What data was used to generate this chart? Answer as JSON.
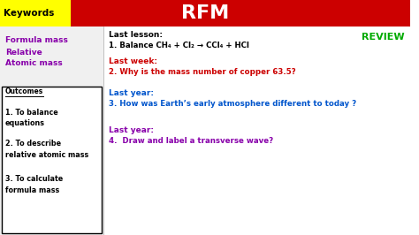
{
  "title": "RFM",
  "title_bg": "#cc0000",
  "title_color": "#ffffff",
  "keywords_label": "Keywords",
  "keywords_bg": "#ffff00",
  "keywords_color": "#000000",
  "keywords_list": [
    "Formula mass",
    "Relative",
    "Atomic mass"
  ],
  "keywords_list_color": "#8800aa",
  "outcomes_label": "Outcomes",
  "outcomes_items": [
    "1. To balance\nequations",
    "2. To describe\nrelative atomic mass",
    "3. To calculate\nformula mass"
  ],
  "outcomes_color": "#000000",
  "review_text": "REVIEW",
  "review_color": "#00aa00",
  "sections": [
    {
      "label": "Last lesson:",
      "label_color": "#000000",
      "content": "1. Balance CH₄ + Cl₂ → CCl₄ + HCl",
      "content_color": "#000000"
    },
    {
      "label": "Last week:",
      "label_color": "#cc0000",
      "content": "2. Why is the mass number of copper 63.5?",
      "content_color": "#cc0000"
    },
    {
      "label": "Last year:",
      "label_color": "#0055cc",
      "content": "3. How was Earth’s early atmosphere different to today ?",
      "content_color": "#0055cc"
    },
    {
      "label": "Last year:",
      "label_color": "#8800aa",
      "content": "4.  Draw and label a transverse wave?",
      "content_color": "#8800aa"
    }
  ],
  "bg_color": "#ffffff",
  "divider_color": "#aaaaaa",
  "left_panel_bg": "#f0f0f0",
  "outcomes_box_bg": "#ffffff",
  "outcomes_box_edge": "#000000"
}
